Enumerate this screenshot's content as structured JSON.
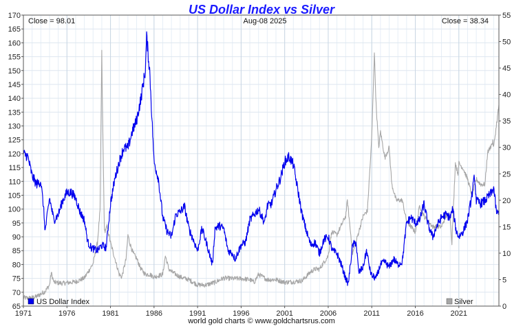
{
  "chart_data": {
    "type": "line",
    "title": "US Dollar Index vs Silver",
    "header": {
      "left": "Close = 98.01",
      "center": "Aug-08  2025",
      "right": "Close = 38.34"
    },
    "credit": "world gold charts © www.goldchartsrus.com",
    "x_range": [
      1971,
      2025.6
    ],
    "x_ticks": [
      "1971",
      "1976",
      "1981",
      "1986",
      "1991",
      "1996",
      "2001",
      "2006",
      "2011",
      "2016",
      "2021"
    ],
    "y_left": {
      "range": [
        65,
        170
      ],
      "ticks": [
        "65",
        "70",
        "75",
        "80",
        "85",
        "90",
        "95",
        "100",
        "105",
        "110",
        "115",
        "120",
        "125",
        "130",
        "135",
        "140",
        "145",
        "150",
        "155",
        "160",
        "165",
        "170"
      ]
    },
    "y_right": {
      "range": [
        0,
        55
      ],
      "ticks": [
        "0",
        "5",
        "10",
        "15",
        "20",
        "25",
        "30",
        "35",
        "40",
        "45",
        "50",
        "55"
      ]
    },
    "grid": true,
    "legend": "bottom",
    "series": [
      {
        "name": "US Dollar Index",
        "axis": "left",
        "color": "#0000ee",
        "x": [
          1971.0,
          1971.5,
          1972.0,
          1972.5,
          1973.0,
          1973.3,
          1973.5,
          1974.0,
          1974.5,
          1975.0,
          1975.5,
          1976.0,
          1976.5,
          1977.0,
          1977.5,
          1978.0,
          1978.4,
          1978.8,
          1979.5,
          1980.0,
          1980.5,
          1981.0,
          1981.5,
          1982.0,
          1982.5,
          1983.0,
          1983.5,
          1984.0,
          1984.5,
          1985.0,
          1985.15,
          1985.5,
          1986.0,
          1986.5,
          1987.0,
          1987.5,
          1988.0,
          1988.5,
          1989.0,
          1989.5,
          1990.0,
          1990.5,
          1991.0,
          1991.5,
          1992.0,
          1992.7,
          1993.0,
          1993.5,
          1994.0,
          1994.5,
          1995.0,
          1995.3,
          1996.0,
          1996.5,
          1997.0,
          1997.5,
          1998.0,
          1998.7,
          1999.0,
          1999.5,
          2000.0,
          2000.5,
          2001.0,
          2001.5,
          2002.0,
          2002.5,
          2003.0,
          2003.5,
          2004.0,
          2004.5,
          2005.0,
          2005.5,
          2006.0,
          2006.5,
          2007.0,
          2007.5,
          2008.0,
          2008.3,
          2008.8,
          2009.2,
          2009.5,
          2010.0,
          2010.4,
          2010.8,
          2011.0,
          2011.5,
          2012.0,
          2012.5,
          2013.0,
          2013.5,
          2014.0,
          2014.5,
          2015.0,
          2015.5,
          2016.0,
          2016.5,
          2017.0,
          2017.5,
          2018.0,
          2018.5,
          2019.0,
          2019.5,
          2020.0,
          2020.3,
          2020.7,
          2021.0,
          2021.5,
          2022.0,
          2022.5,
          2022.8,
          2023.0,
          2023.5,
          2024.0,
          2024.5,
          2024.8,
          2025.0,
          2025.3,
          2025.6
        ],
        "values": [
          120,
          119,
          112,
          109,
          110,
          101,
          92,
          104,
          96,
          98,
          103,
          106,
          106,
          104,
          99,
          96,
          88,
          86,
          85,
          87,
          86,
          102,
          111,
          117,
          122,
          122,
          128,
          132,
          140,
          150,
          162,
          150,
          117,
          111,
          97,
          92,
          90,
          98,
          99,
          101,
          93,
          89,
          85,
          93,
          88,
          80,
          93,
          94,
          93,
          85,
          84,
          82,
          87,
          88,
          96,
          98,
          100,
          95,
          101,
          102,
          107,
          111,
          117,
          119,
          116,
          107,
          98,
          92,
          87,
          88,
          84,
          89,
          90,
          85,
          84,
          80,
          75,
          73,
          87,
          88,
          77,
          79,
          85,
          78,
          76,
          75,
          80,
          81,
          79,
          82,
          80,
          81,
          95,
          97,
          95,
          96,
          102,
          94,
          90,
          94,
          97,
          98,
          97,
          100,
          92,
          90,
          92,
          96,
          105,
          112,
          103,
          102,
          103,
          105,
          106,
          108,
          99,
          98
        ]
      },
      {
        "name": "Silver",
        "axis": "right",
        "color": "#a6a6a6",
        "x": [
          1971.0,
          1971.5,
          1972.0,
          1972.5,
          1973.0,
          1973.5,
          1974.0,
          1974.2,
          1974.5,
          1975.0,
          1975.5,
          1976.0,
          1977.0,
          1978.0,
          1979.0,
          1979.5,
          1979.8,
          1980.0,
          1980.1,
          1980.3,
          1980.6,
          1981.0,
          1981.5,
          1982.0,
          1982.3,
          1982.8,
          1983.0,
          1983.2,
          1983.6,
          1984.0,
          1984.5,
          1985.0,
          1985.5,
          1986.0,
          1987.0,
          1987.3,
          1987.7,
          1988.0,
          1989.0,
          1990.0,
          1991.0,
          1992.0,
          1993.0,
          1994.0,
          1995.0,
          1996.0,
          1997.0,
          1997.5,
          1998.0,
          1999.0,
          2000.0,
          2001.0,
          2002.0,
          2003.0,
          2004.0,
          2004.5,
          2005.0,
          2006.0,
          2006.4,
          2007.0,
          2008.0,
          2008.2,
          2008.8,
          2009.0,
          2009.5,
          2010.0,
          2010.5,
          2010.9,
          2011.0,
          2011.3,
          2011.5,
          2011.8,
          2012.0,
          2012.5,
          2013.0,
          2013.3,
          2013.8,
          2014.0,
          2014.5,
          2015.0,
          2015.5,
          2016.0,
          2016.5,
          2017.0,
          2018.0,
          2019.0,
          2019.5,
          2020.0,
          2020.2,
          2020.6,
          2020.9,
          2021.0,
          2021.5,
          2022.0,
          2022.5,
          2023.0,
          2023.5,
          2024.0,
          2024.3,
          2024.6,
          2024.9,
          2025.0,
          2025.3,
          2025.6
        ],
        "values": [
          1.6,
          1.5,
          1.6,
          1.8,
          2.3,
          2.8,
          4.0,
          6.3,
          4.5,
          4.4,
          4.3,
          4.4,
          4.6,
          5.3,
          8.0,
          12.0,
          18.0,
          48.0,
          35.0,
          14.0,
          15.0,
          12.0,
          9.0,
          6.0,
          5.5,
          9.0,
          13.5,
          12.0,
          10.0,
          9.0,
          7.0,
          6.0,
          6.0,
          5.5,
          6.0,
          9.5,
          7.0,
          6.5,
          5.5,
          5.0,
          4.0,
          4.0,
          4.5,
          5.3,
          5.2,
          5.2,
          5.0,
          4.5,
          6.0,
          5.0,
          5.0,
          4.5,
          4.6,
          4.8,
          6.5,
          7.0,
          7.0,
          9.5,
          14.0,
          13.5,
          17.0,
          20.0,
          10.0,
          11.0,
          14.0,
          17.0,
          18.0,
          29.0,
          32.0,
          48.0,
          38.0,
          30.0,
          33.0,
          28.0,
          30.0,
          23.0,
          20.0,
          20.0,
          20.0,
          16.0,
          15.0,
          14.0,
          19.0,
          17.0,
          15.0,
          15.0,
          17.0,
          17.0,
          12.0,
          27.0,
          25.0,
          27.0,
          26.0,
          24.0,
          21.0,
          24.0,
          23.0,
          23.0,
          29.0,
          30.0,
          31.0,
          30.0,
          34.0,
          38.0
        ]
      }
    ]
  }
}
